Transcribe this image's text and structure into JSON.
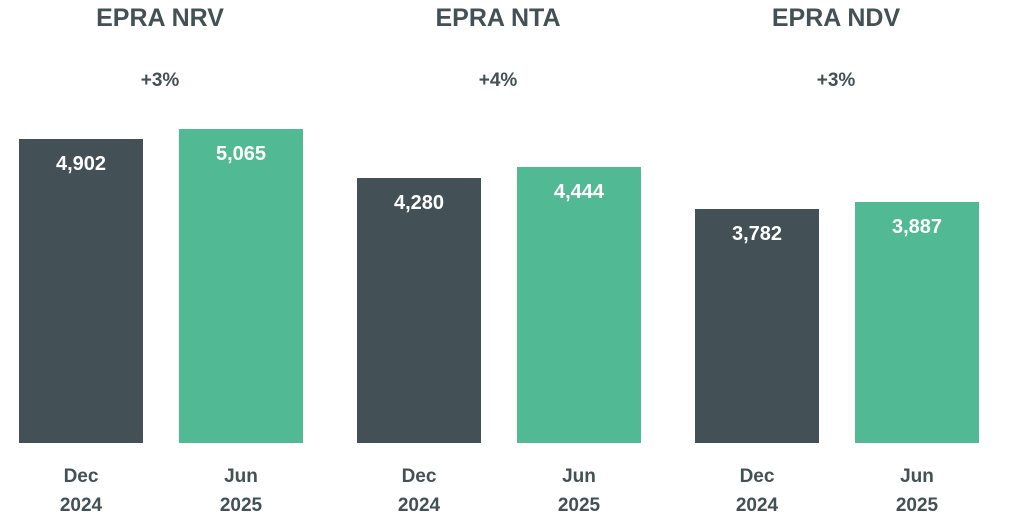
{
  "chart_data": [
    {
      "type": "bar",
      "title": "EPRA NRV",
      "annotation": "+3%",
      "categories": [
        "Dec\n2024",
        "Jun\n2025"
      ],
      "values": [
        4902,
        5065
      ],
      "value_labels": [
        "4,902",
        "5,065"
      ],
      "colors": [
        "#435055",
        "#52b995"
      ],
      "ylim": [
        0,
        7000
      ]
    },
    {
      "type": "bar",
      "title": "EPRA NTA",
      "annotation": "+4%",
      "categories": [
        "Dec\n2024",
        "Jun\n2025"
      ],
      "values": [
        4280,
        4444
      ],
      "value_labels": [
        "4,280",
        "4,444"
      ],
      "colors": [
        "#435055",
        "#52b995"
      ],
      "ylim": [
        0,
        7000
      ]
    },
    {
      "type": "bar",
      "title": "EPRA NDV",
      "annotation": "+3%",
      "categories": [
        "Dec\n2024",
        "Jun\n2025"
      ],
      "values": [
        3782,
        3887
      ],
      "value_labels": [
        "3,782",
        "3,887"
      ],
      "colors": [
        "#435055",
        "#52b995"
      ],
      "ylim": [
        0,
        7000
      ]
    }
  ]
}
